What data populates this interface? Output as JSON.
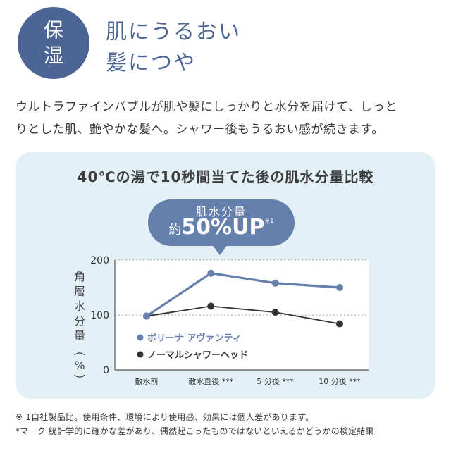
{
  "badge": {
    "line1": "保",
    "line2": "湿"
  },
  "title": {
    "line1": "肌にうるおい",
    "line2": "髪につや"
  },
  "description": {
    "line1": "ウルトラファインバブルが肌や髪にしっかりと水分を届けて、しっと",
    "line2": "りとした肌、艶やかな髪へ。シャワー後もうるおい感が続きます。"
  },
  "callout": {
    "line1": "肌水分量",
    "prefix": "約",
    "value": "50%UP",
    "note": "※1"
  },
  "colors": {
    "accent": "#4c6594",
    "series1": "#6680ad",
    "series2": "#333333",
    "panel": "#e3f0f6"
  },
  "chart_data": {
    "type": "line",
    "title": "40℃の湯で10秒間当てた後の肌水分量比較",
    "ylabel": "角層水分量(%)",
    "ylabel_chars": [
      "角",
      "層",
      "水",
      "分",
      "量"
    ],
    "ylabel_unit": "%",
    "ylim": [
      0,
      200
    ],
    "yticks": [
      "0",
      "100",
      "200"
    ],
    "grid": "horizontal dotted at 100 and 200",
    "categories": [
      "散水前",
      "散水直後 ***",
      "5 分後 ***",
      "10 分後 ***"
    ],
    "legend_position": "inside-left",
    "series": [
      {
        "name": "ボリーナ アヴァンティ",
        "values": [
          98,
          176,
          158,
          150
        ]
      },
      {
        "name": "ノーマルシャワーヘッド",
        "values": [
          98,
          116,
          105,
          84
        ]
      }
    ]
  },
  "footnotes": [
    "※ 1自社製品比。使用条件、環境により使用感、効果には個人差があります。",
    "*マーク 統計学的に確かな差があり、偶然起こったものではないといえるかどうかの検定結果"
  ]
}
